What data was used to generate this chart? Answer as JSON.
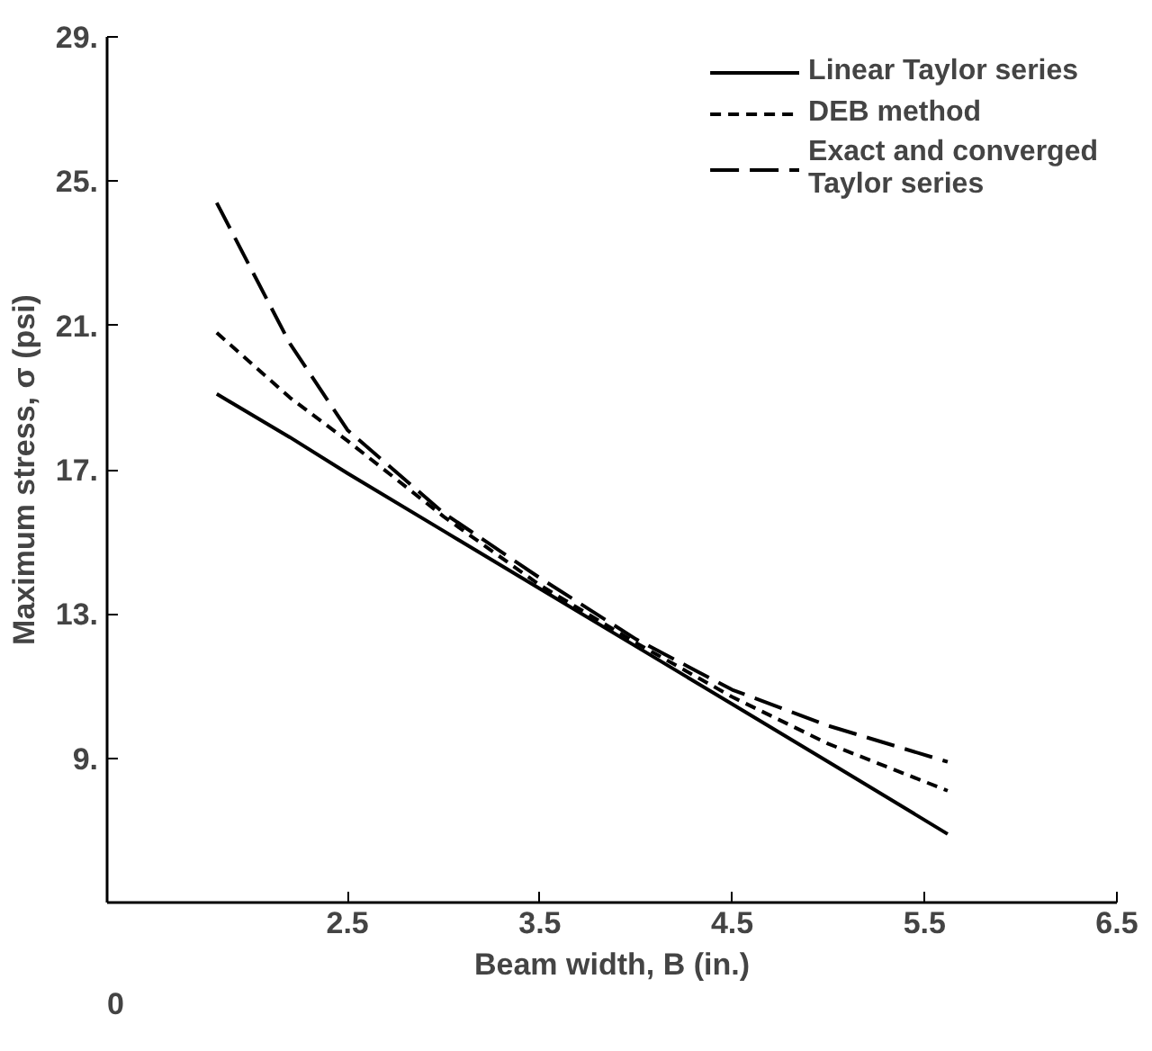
{
  "chart_data": {
    "type": "line",
    "xlabel": "Beam width, B (in.)",
    "ylabel": "Maximum stress, σ (psi)",
    "x": [
      1.82,
      2.2,
      2.5,
      3.0,
      3.5,
      4.0,
      4.5,
      5.0,
      5.62
    ],
    "series": [
      {
        "name": "Linear Taylor series",
        "color": "#000000",
        "line_style": "solid",
        "values": [
          19.1,
          17.9,
          16.9,
          15.3,
          13.7,
          12.1,
          10.5,
          8.9,
          6.9
        ]
      },
      {
        "name": "DEB method",
        "color": "#000000",
        "line_style": "dotted",
        "values": [
          20.8,
          19.0,
          17.8,
          15.7,
          13.8,
          12.2,
          10.7,
          9.4,
          8.1
        ]
      },
      {
        "name": "Exact and converged\nTaylor series",
        "color": "#000000",
        "line_style": "dashed",
        "values": [
          24.4,
          20.5,
          18.1,
          15.8,
          14.0,
          12.3,
          10.9,
          9.9,
          8.9
        ]
      }
    ],
    "xlim": [
      1.25,
      6.5
    ],
    "ylim": [
      5,
      29
    ],
    "xticks": [
      2.5,
      3.5,
      4.5,
      5.5,
      6.5
    ],
    "annotations": [
      "0"
    ],
    "yticks": [
      {
        "value": 9,
        "label": "9."
      },
      {
        "value": 13,
        "label": "13."
      },
      {
        "value": 17,
        "label": "17."
      },
      {
        "value": 21,
        "label": "21."
      },
      {
        "value": 25,
        "label": "25."
      },
      {
        "value": 29,
        "label": "29."
      }
    ],
    "grid": false,
    "legend": "top right",
    "marker": "none"
  }
}
